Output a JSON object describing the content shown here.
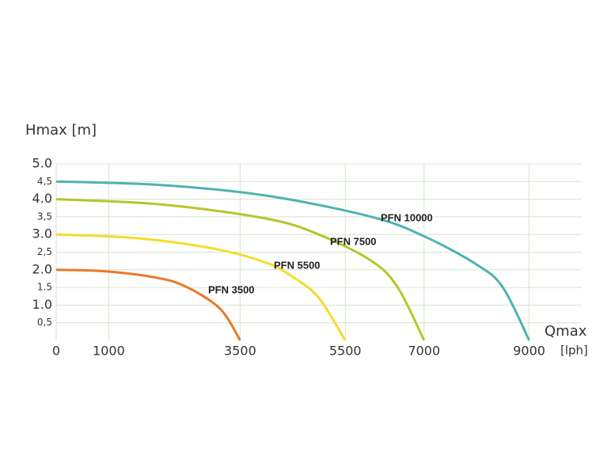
{
  "chart_data": {
    "type": "line",
    "y_label": "Hmax [m]",
    "x_label": "Qmax",
    "x_unit": "[lph]",
    "xlim": [
      0,
      10000
    ],
    "ylim": [
      0,
      5
    ],
    "xticks": [
      0,
      1000,
      3500,
      5500,
      7000,
      9000
    ],
    "yticks": [
      {
        "value": 5.0,
        "label": "5.0"
      },
      {
        "value": 4.5,
        "label": "4,5"
      },
      {
        "value": 4.0,
        "label": "4.0"
      },
      {
        "value": 3.5,
        "label": "3,5"
      },
      {
        "value": 3.0,
        "label": "3.0"
      },
      {
        "value": 2.5,
        "label": "2,5"
      },
      {
        "value": 2.0,
        "label": "2.0"
      },
      1.5,
      {
        "value": 1.0,
        "label": "1.0"
      },
      {
        "value": 0.5,
        "label": "0,5"
      }
    ],
    "grid": true,
    "series": [
      {
        "name": "PFN 3500",
        "color": "#e8792a",
        "x": [
          0,
          1000,
          2000,
          2500,
          3000,
          3250,
          3500
        ],
        "values": [
          2.0,
          1.95,
          1.75,
          1.5,
          1.05,
          0.65,
          0
        ]
      },
      {
        "name": "PFN 5500",
        "color": "#f3dc2c",
        "x": [
          0,
          1500,
          3000,
          4000,
          4500,
          5000,
          5500
        ],
        "values": [
          3.0,
          2.9,
          2.6,
          2.2,
          1.8,
          1.2,
          0
        ]
      },
      {
        "name": "PFN 7500",
        "color": "#b7c52c",
        "x": [
          0,
          2000,
          4000,
          5000,
          6000,
          6500,
          7000
        ],
        "values": [
          4.0,
          3.85,
          3.45,
          3.0,
          2.25,
          1.5,
          0
        ]
      },
      {
        "name": "PFN 10000",
        "color": "#4fb3b0",
        "x": [
          0,
          2000,
          4000,
          6000,
          7000,
          8000,
          8500,
          9000
        ],
        "values": [
          4.5,
          4.4,
          4.1,
          3.5,
          2.95,
          2.15,
          1.5,
          0
        ]
      }
    ]
  }
}
